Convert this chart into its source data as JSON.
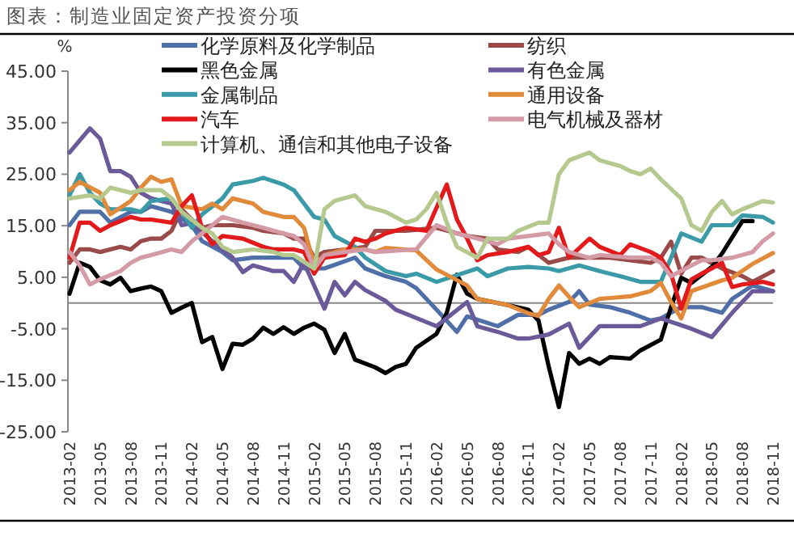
{
  "chart_data": {
    "type": "line",
    "title": "图表：制造业固定资产投资分项",
    "ylabel": "%",
    "xlim": [
      "2013-02",
      "2018-11"
    ],
    "xticks": [
      "2013-02",
      "2013-05",
      "2013-08",
      "2013-11",
      "2014-02",
      "2014-05",
      "2014-08",
      "2014-11",
      "2015-02",
      "2015-05",
      "2015-08",
      "2015-11",
      "2016-02",
      "2016-05",
      "2016-08",
      "2016-11",
      "2017-02",
      "2017-05",
      "2017-08",
      "2017-11",
      "2018-02",
      "2018-05",
      "2018-08",
      "2018-11"
    ],
    "ylim": [
      -25,
      45
    ],
    "yticks": [
      {
        "value": 45,
        "label": "45.00"
      },
      {
        "value": 35,
        "label": "35.00"
      },
      {
        "value": 25,
        "label": "25.00"
      },
      {
        "value": 15,
        "label": "15.00"
      },
      {
        "value": 5,
        "label": "5.00"
      },
      {
        "value": -5,
        "label": "-5.00"
      },
      {
        "value": -15,
        "label": "-15.00"
      },
      {
        "value": -25,
        "label": "-25.00"
      }
    ],
    "legend": "top",
    "series": [
      {
        "name": "化学原料及化学制品",
        "color": "#4f6fa8",
        "x": [
          "2013-02",
          "2013-03",
          "2013-05",
          "2013-06",
          "2013-08",
          "2013-09",
          "2013-10",
          "2013-12",
          "2014-02",
          "2014-03",
          "2014-05",
          "2014-06",
          "2014-08",
          "2014-09",
          "2014-11",
          "2014-12",
          "2015-01",
          "2015-03",
          "2015-06",
          "2015-07",
          "2015-09",
          "2015-11",
          "2015-12",
          "2016-02",
          "2016-04",
          "2016-05",
          "2016-08",
          "2016-10",
          "2016-12",
          "2017-01",
          "2017-03",
          "2017-04",
          "2017-05",
          "2017-07",
          "2017-09",
          "2017-11",
          "2017-12",
          "2018-02",
          "2018-04",
          "2018-06",
          "2018-07",
          "2018-09",
          "2018-11"
        ],
        "values": [
          15.1,
          17.7,
          17.7,
          15.6,
          17.7,
          17.7,
          18.8,
          17.7,
          15.1,
          12,
          9.9,
          8.3,
          8.8,
          8.8,
          8.8,
          8.8,
          6.7,
          6.7,
          8.8,
          6.7,
          5.2,
          4.1,
          2.9,
          -1.3,
          -5.6,
          -2.6,
          -4.5,
          -2.3,
          -2.3,
          -1.3,
          0.2,
          2.3,
          -0.3,
          -0.8,
          -1.9,
          -3.4,
          -3,
          -0.8,
          -0.8,
          -1.9,
          0.8,
          3.4,
          2.3
        ]
      },
      {
        "name": "纺织",
        "color": "#9b4a4a",
        "x": [
          "2013-02",
          "2013-03",
          "2013-04",
          "2013-05",
          "2013-07",
          "2013-08",
          "2013-09",
          "2013-10",
          "2013-11",
          "2013-12",
          "2014-01",
          "2014-02",
          "2014-03",
          "2014-04",
          "2014-06",
          "2014-08",
          "2014-09",
          "2014-11",
          "2014-12",
          "2015-01",
          "2015-02",
          "2015-03",
          "2015-05",
          "2015-07",
          "2015-08",
          "2015-11",
          "2016-02",
          "2016-05",
          "2016-07",
          "2016-08",
          "2016-10",
          "2016-11",
          "2017-01",
          "2017-03",
          "2017-05",
          "2017-07",
          "2017-09",
          "2017-11",
          "2017-12",
          "2018-01",
          "2018-02",
          "2018-03",
          "2018-04",
          "2018-06",
          "2018-08",
          "2018-09",
          "2018-11"
        ],
        "values": [
          7.8,
          10.4,
          10.4,
          9.9,
          10.9,
          10.4,
          12,
          12.5,
          12.5,
          14,
          18.2,
          16.2,
          14.6,
          15.1,
          15.1,
          14.6,
          14,
          13.5,
          12.5,
          12.5,
          8.8,
          9.9,
          10.4,
          10.9,
          14,
          14,
          14.6,
          13,
          12.5,
          10.4,
          9.9,
          10.9,
          7.8,
          8.8,
          8.8,
          8.8,
          8.3,
          7.8,
          8.8,
          11.9,
          5.7,
          8.8,
          8.8,
          6.7,
          5.2,
          4.1,
          6.2
        ]
      },
      {
        "name": "黑色金属",
        "color": "#000000",
        "x": [
          "2013-02",
          "2013-03",
          "2013-04",
          "2013-05",
          "2013-06",
          "2013-07",
          "2013-08",
          "2013-09",
          "2013-10",
          "2013-11",
          "2013-12",
          "2014-01",
          "2014-02",
          "2014-03",
          "2014-04",
          "2014-05",
          "2014-06",
          "2014-07",
          "2014-08",
          "2014-09",
          "2014-10",
          "2014-11",
          "2014-12",
          "2015-01",
          "2015-02",
          "2015-03",
          "2015-04",
          "2015-05",
          "2015-06",
          "2015-08",
          "2015-09",
          "2015-10",
          "2015-11",
          "2015-12",
          "2016-02",
          "2016-03",
          "2016-04",
          "2016-05",
          "2016-06",
          "2016-08",
          "2016-09",
          "2016-11",
          "2016-12",
          "2017-01",
          "2017-02",
          "2017-03",
          "2017-04",
          "2017-05",
          "2017-06",
          "2017-07",
          "2017-09",
          "2017-10",
          "2017-12",
          "2018-01",
          "2018-02",
          "2018-03",
          "2018-05",
          "2018-06",
          "2018-08",
          "2018-09"
        ],
        "values": [
          1.8,
          7.8,
          7,
          4.4,
          3.6,
          4.9,
          2.3,
          2.8,
          3.2,
          2.3,
          -1.9,
          -0.9,
          0,
          -7.6,
          -6.6,
          -12.8,
          -7.9,
          -8.1,
          -6.9,
          -4.8,
          -6,
          -4.7,
          -6,
          -4.8,
          -4,
          -5.2,
          -9.7,
          -6,
          -11,
          -12.5,
          -13.6,
          -12.4,
          -11.8,
          -8.7,
          -6,
          -1.9,
          5.5,
          1.8,
          0.8,
          0,
          -0.4,
          -1.3,
          -3.4,
          -12.3,
          -20.2,
          -9.7,
          -11.8,
          -10.8,
          -11.8,
          -10.5,
          -10.8,
          -9.2,
          -7.1,
          -0.8,
          4.9,
          3.9,
          7,
          9.6,
          15.9,
          15.9
        ]
      },
      {
        "name": "有色金属",
        "color": "#6a5a9a",
        "x": [
          "2013-02",
          "2013-04",
          "2013-05",
          "2013-06",
          "2013-07",
          "2013-08",
          "2013-09",
          "2013-10",
          "2013-12",
          "2014-01",
          "2014-02",
          "2014-04",
          "2014-06",
          "2014-07",
          "2014-08",
          "2014-10",
          "2014-11",
          "2014-12",
          "2015-01",
          "2015-03",
          "2015-04",
          "2015-05",
          "2015-06",
          "2015-07",
          "2015-09",
          "2015-10",
          "2016-02",
          "2016-05",
          "2016-06",
          "2016-08",
          "2016-10",
          "2016-11",
          "2017-01",
          "2017-03",
          "2017-04",
          "2017-06",
          "2017-08",
          "2017-10",
          "2017-12",
          "2018-03",
          "2018-05",
          "2018-07",
          "2018-09",
          "2018-11"
        ],
        "values": [
          29.2,
          33.9,
          31.9,
          25.6,
          25.6,
          24.5,
          21.4,
          20.3,
          19.3,
          15.1,
          15.5,
          12,
          8.8,
          6,
          7.3,
          6.2,
          6.2,
          4.1,
          7.8,
          -1.1,
          4.1,
          1.5,
          4.1,
          2.5,
          0.4,
          -1.3,
          -4.5,
          0.2,
          -4.5,
          -5.6,
          -6.9,
          -6.9,
          -6.1,
          -4,
          -8.7,
          -4.5,
          -4.5,
          -4.5,
          -3,
          -5,
          -6.6,
          -1.9,
          2.3,
          2.3
        ]
      },
      {
        "name": "金属制品",
        "color": "#3a9aa8",
        "x": [
          "2013-02",
          "2013-03",
          "2013-04",
          "2013-05",
          "2013-06",
          "2013-08",
          "2013-09",
          "2013-10",
          "2013-12",
          "2014-01",
          "2014-02",
          "2014-03",
          "2014-05",
          "2014-06",
          "2014-08",
          "2014-09",
          "2014-11",
          "2014-12",
          "2015-01",
          "2015-02",
          "2015-03",
          "2015-04",
          "2015-06",
          "2015-07",
          "2015-09",
          "2015-11",
          "2015-12",
          "2016-02",
          "2016-06",
          "2016-07",
          "2016-09",
          "2016-11",
          "2017-01",
          "2017-02",
          "2017-04",
          "2017-06",
          "2017-08",
          "2017-10",
          "2017-12",
          "2018-01",
          "2018-02",
          "2018-04",
          "2018-05",
          "2018-07",
          "2018-08",
          "2018-10",
          "2018-11"
        ],
        "values": [
          20.9,
          25,
          21.4,
          19.3,
          18.2,
          18.2,
          17.7,
          19.8,
          20.3,
          17.7,
          14.6,
          17.2,
          20.3,
          23,
          23.7,
          24.3,
          23,
          21.9,
          19.3,
          16.7,
          16.2,
          13,
          10.9,
          8.8,
          6.2,
          5.2,
          5.7,
          4.1,
          6.7,
          5.2,
          6.7,
          7,
          6.7,
          6.2,
          7.3,
          6.2,
          5.2,
          4.1,
          4.1,
          8.8,
          13.5,
          11.9,
          15.1,
          15.1,
          17,
          16.7,
          15.6
        ]
      },
      {
        "name": "通用设备",
        "color": "#e08a3a",
        "x": [
          "2013-02",
          "2013-03",
          "2013-05",
          "2013-06",
          "2013-08",
          "2013-09",
          "2013-10",
          "2013-11",
          "2013-12",
          "2014-01",
          "2014-03",
          "2014-04",
          "2014-05",
          "2014-06",
          "2014-08",
          "2014-09",
          "2014-11",
          "2014-12",
          "2015-01",
          "2015-02",
          "2015-03",
          "2015-05",
          "2015-07",
          "2015-08",
          "2015-09",
          "2015-12",
          "2016-02",
          "2016-05",
          "2016-06",
          "2016-09",
          "2016-11",
          "2016-12",
          "2017-01",
          "2017-02",
          "2017-03",
          "2017-04",
          "2017-06",
          "2017-09",
          "2017-11",
          "2017-12",
          "2018-01",
          "2018-02",
          "2018-03",
          "2018-06",
          "2018-07",
          "2018-09",
          "2018-11"
        ],
        "values": [
          21.9,
          23.5,
          21.4,
          17.2,
          19.8,
          22.4,
          24.5,
          23.5,
          24,
          18.8,
          18.2,
          19.3,
          18.2,
          20.3,
          19.3,
          17.7,
          16.7,
          16.7,
          14.6,
          7.3,
          9.3,
          10.4,
          10.4,
          9.9,
          10.7,
          10.2,
          6.5,
          3.4,
          0.8,
          -0.4,
          -2,
          -2.5,
          0.8,
          3.4,
          1.2,
          -0.8,
          0.8,
          1.3,
          2.3,
          3.9,
          0.2,
          -3,
          2.3,
          4.4,
          4.9,
          7.6,
          9.7
        ]
      },
      {
        "name": "汽车",
        "color": "#e31a1c",
        "x": [
          "2013-02",
          "2013-03",
          "2013-04",
          "2013-05",
          "2013-06",
          "2013-08",
          "2013-09",
          "2013-10",
          "2013-12",
          "2014-01",
          "2014-02",
          "2014-03",
          "2014-04",
          "2014-05",
          "2014-07",
          "2014-09",
          "2014-10",
          "2014-12",
          "2015-01",
          "2015-02",
          "2015-03",
          "2015-05",
          "2015-06",
          "2015-07",
          "2015-08",
          "2015-09",
          "2015-11",
          "2016-01",
          "2016-03",
          "2016-04",
          "2016-05",
          "2016-06",
          "2016-07",
          "2016-09",
          "2016-11",
          "2016-12",
          "2017-01",
          "2017-02",
          "2017-03",
          "2017-05",
          "2017-06",
          "2017-08",
          "2017-09",
          "2017-11",
          "2017-12",
          "2018-01",
          "2018-02",
          "2018-03",
          "2018-04",
          "2018-05",
          "2018-06",
          "2018-07",
          "2018-08",
          "2018-10",
          "2018-11"
        ],
        "values": [
          8.8,
          15.6,
          15.6,
          14,
          15.1,
          16.7,
          16.2,
          16.2,
          15.6,
          18.8,
          20.9,
          14.6,
          11.4,
          13,
          12.5,
          10.9,
          10.4,
          10.4,
          9.9,
          5.7,
          8.8,
          9.3,
          12.5,
          11.9,
          12.5,
          13.5,
          14.6,
          14,
          23,
          16.2,
          12.5,
          8.3,
          9.3,
          9.9,
          10.9,
          9.3,
          9.9,
          14.6,
          8.8,
          12.5,
          10.9,
          9.3,
          11.4,
          9.9,
          8.8,
          5.7,
          -1.1,
          4.6,
          5.7,
          6.7,
          7.8,
          3.1,
          3.6,
          4.1,
          3.6
        ]
      },
      {
        "name": "电气机械及器材",
        "color": "#d49aa5",
        "x": [
          "2013-02",
          "2013-03",
          "2013-04",
          "2013-05",
          "2013-07",
          "2013-08",
          "2013-09",
          "2013-10",
          "2013-12",
          "2014-01",
          "2014-02",
          "2014-03",
          "2014-04",
          "2014-05",
          "2014-07",
          "2014-08",
          "2014-09",
          "2014-11",
          "2014-12",
          "2015-01",
          "2015-02",
          "2015-03",
          "2015-05",
          "2015-07",
          "2015-08",
          "2015-12",
          "2016-02",
          "2016-04",
          "2016-06",
          "2016-08",
          "2016-09",
          "2016-11",
          "2017-01",
          "2017-02",
          "2017-03",
          "2017-05",
          "2017-06",
          "2017-09",
          "2017-11",
          "2017-12",
          "2018-01",
          "2018-03",
          "2018-04",
          "2018-05",
          "2018-07",
          "2018-09",
          "2018-10",
          "2018-11"
        ],
        "values": [
          9.9,
          7.3,
          3.6,
          4.6,
          6.2,
          7.8,
          8.8,
          9.3,
          10.4,
          9.9,
          12,
          13.5,
          15.1,
          16.7,
          15.6,
          15.1,
          14.6,
          13.5,
          13,
          11.4,
          6.7,
          9.3,
          9.9,
          10.4,
          9.9,
          10.4,
          15.1,
          13.5,
          12.5,
          11.4,
          12.5,
          13,
          13.5,
          11.4,
          9.9,
          8.8,
          9.3,
          8.8,
          8.8,
          7.8,
          5.2,
          7.3,
          8.3,
          8.3,
          8.8,
          9.9,
          12,
          13.5
        ]
      },
      {
        "name": "计算机、通信和其他电子设备",
        "color": "#b5c98f",
        "x": [
          "2013-02",
          "2013-04",
          "2013-05",
          "2013-06",
          "2013-08",
          "2013-09",
          "2013-11",
          "2013-12",
          "2014-01",
          "2014-03",
          "2014-04",
          "2014-05",
          "2014-06",
          "2014-08",
          "2014-10",
          "2014-11",
          "2014-12",
          "2015-02",
          "2015-03",
          "2015-04",
          "2015-06",
          "2015-07",
          "2015-09",
          "2015-11",
          "2015-12",
          "2016-01",
          "2016-02",
          "2016-03",
          "2016-04",
          "2016-06",
          "2016-07",
          "2016-09",
          "2016-10",
          "2016-12",
          "2017-01",
          "2017-02",
          "2017-03",
          "2017-05",
          "2017-06",
          "2017-08",
          "2017-09",
          "2017-10",
          "2017-11",
          "2017-12",
          "2018-02",
          "2018-03",
          "2018-04",
          "2018-05",
          "2018-06",
          "2018-07",
          "2018-08",
          "2018-10",
          "2018-11"
        ],
        "values": [
          20.3,
          20.9,
          20.3,
          22.4,
          21.4,
          21.9,
          21.9,
          20.3,
          17.7,
          14.6,
          13.5,
          10.9,
          9.9,
          10.4,
          9.9,
          9.3,
          9.3,
          6.7,
          18.2,
          19.8,
          20.9,
          18.8,
          17.7,
          15.6,
          16.2,
          18.2,
          21.4,
          15.6,
          10.9,
          8.8,
          12.5,
          12.5,
          14,
          15.6,
          15.6,
          25,
          27.7,
          29.2,
          27.7,
          26.6,
          25.6,
          25,
          26.1,
          24,
          20.3,
          15.1,
          14,
          17.7,
          19.8,
          17.2,
          18.2,
          19.8,
          19.5
        ]
      }
    ]
  }
}
